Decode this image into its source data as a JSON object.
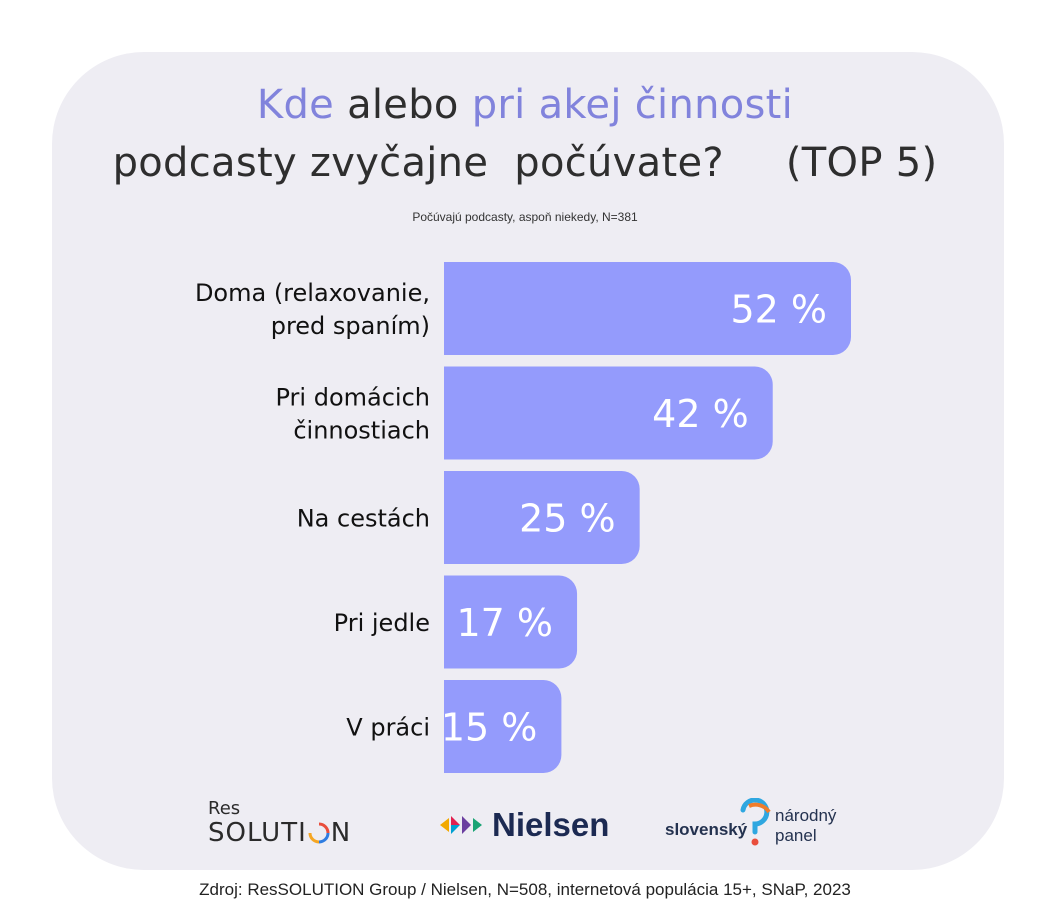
{
  "title": {
    "line1_part1": "Kde",
    "line1_part2": " alebo ",
    "line1_part3": "pri akej činnosti",
    "line2_part1": "podcasty zvyčajne  počúvate?",
    "line2_part2": "(TOP 5)"
  },
  "subtitle": "Počúvajú podcasty, aspoň niekedy, N=381",
  "colors": {
    "bar": "#949bfc",
    "accent": "#8183dc",
    "card": "#eeedf3"
  },
  "chart_data": {
    "type": "bar",
    "orientation": "horizontal",
    "categories": [
      [
        "Doma (relaxovanie,",
        "pred spaním)"
      ],
      [
        "Pri domácich",
        "činnostiach"
      ],
      [
        "Na cestách"
      ],
      [
        "Pri jedle"
      ],
      [
        "V práci"
      ]
    ],
    "values": [
      52,
      42,
      25,
      17,
      15
    ],
    "value_labels": [
      "52 %",
      "42 %",
      "25 %",
      "17 %",
      "15 %"
    ],
    "unit": "%",
    "xlim": [
      0,
      52
    ],
    "grid": false,
    "legend": "none"
  },
  "logos": {
    "ressolution_small": "Res",
    "ressolution_big": "SOLUTI",
    "ressolution_end": "N",
    "nielsen": "Nielsen",
    "snp_left": "slovenský",
    "snp_right_1": "národný",
    "snp_right_2": "panel"
  },
  "footer": "Zdroj: ResSOLUTION Group / Nielsen, N=508, internetová populácia 15+, SNaP, 2023"
}
